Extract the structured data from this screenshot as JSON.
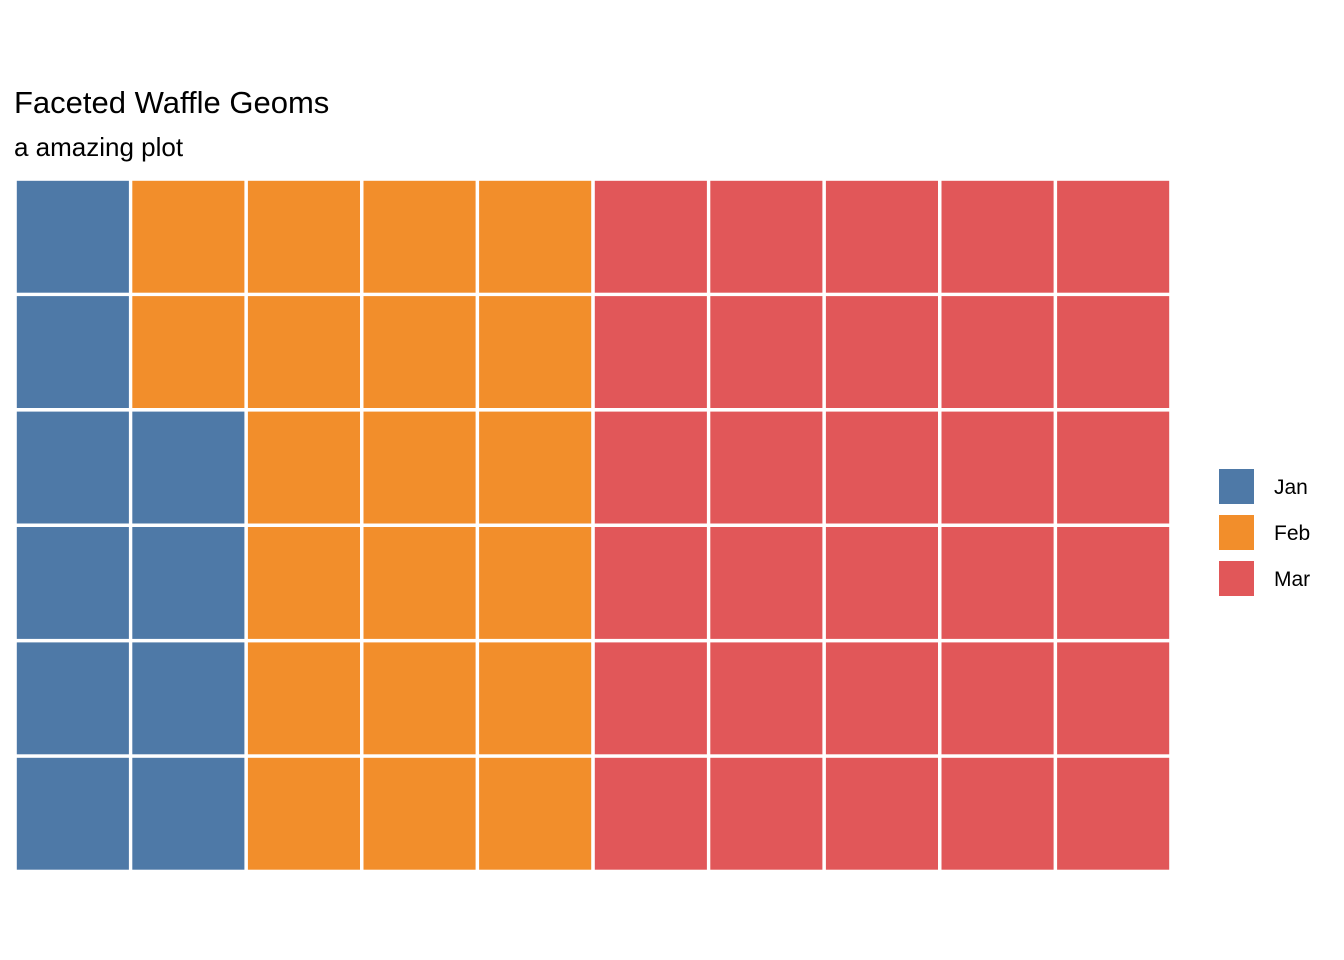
{
  "chart_data": {
    "type": "waffle",
    "title": "Faceted Waffle Geoms",
    "subtitle": "a amazing plot",
    "rows": 6,
    "columns": 10,
    "fill_order": "column-wise, bottom to top",
    "categories": [
      "Jan",
      "Feb",
      "Mar"
    ],
    "values": [
      10,
      20,
      30
    ],
    "colors": [
      "#4e79a7",
      "#f28e2b",
      "#e15759"
    ],
    "grid": false,
    "axes": false,
    "legend_position": "right"
  }
}
